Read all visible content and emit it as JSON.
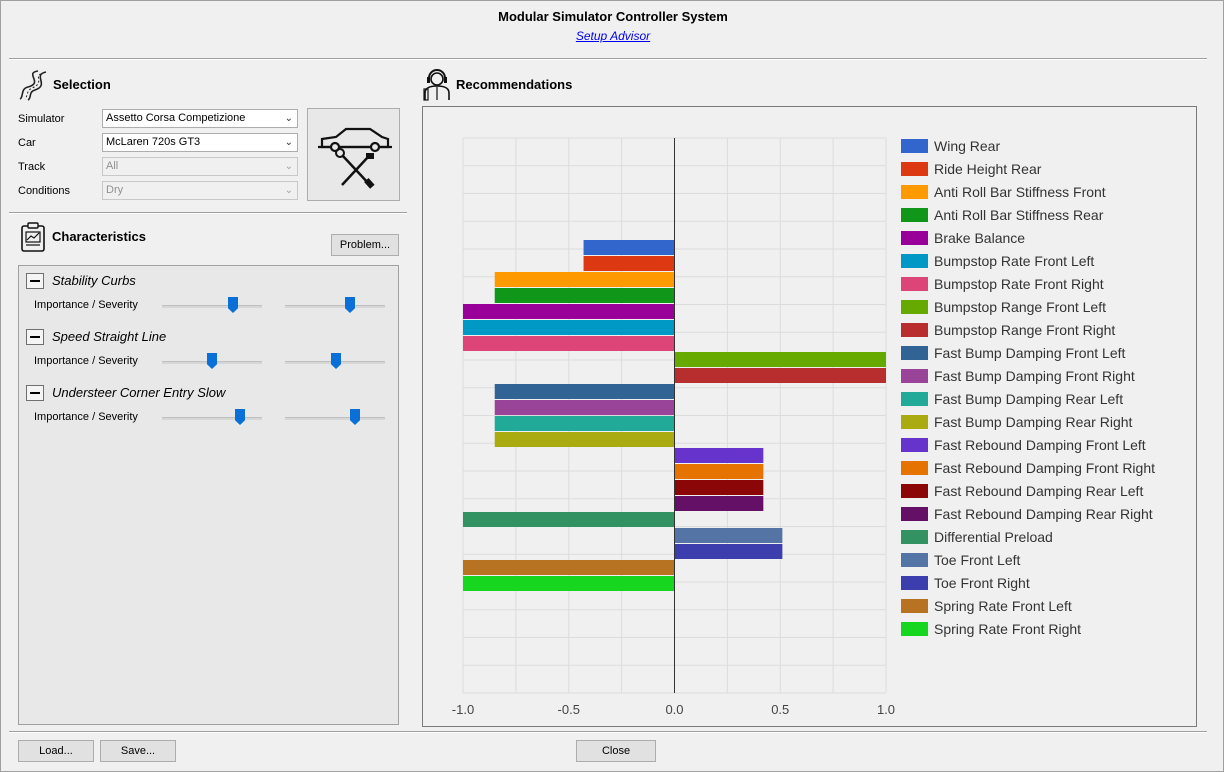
{
  "window": {
    "title": "Modular Simulator Controller System",
    "subtitle": "Setup Advisor"
  },
  "selection": {
    "title": "Selection",
    "icon": "road-icon",
    "fields": [
      {
        "label": "Simulator",
        "value": "Assetto Corsa Competizione",
        "enabled": true
      },
      {
        "label": "Car",
        "value": "McLaren 720s GT3",
        "enabled": true
      },
      {
        "label": "Track",
        "value": "All",
        "enabled": false
      },
      {
        "label": "Conditions",
        "value": "Dry",
        "enabled": false
      }
    ],
    "car_image_icon": "car-tools-icon"
  },
  "characteristics": {
    "title": "Characteristics",
    "icon": "clipboard-icon",
    "problem_button": "Problem...",
    "items": [
      {
        "name": "Stability Curbs",
        "label": "Importance / Severity",
        "importance": 0.71,
        "severity": 0.65
      },
      {
        "name": "Speed Straight Line",
        "label": "Importance / Severity",
        "importance": 0.5,
        "severity": 0.51
      },
      {
        "name": "Understeer Corner Entry Slow",
        "label": "Importance / Severity",
        "importance": 0.78,
        "severity": 0.7
      }
    ]
  },
  "recommendations": {
    "title": "Recommendations",
    "icon": "engineer-icon"
  },
  "chart_data": {
    "type": "bar",
    "orientation": "horizontal",
    "xlim": [
      -1.0,
      1.0
    ],
    "x_ticks": [
      "-1.0",
      "-0.5",
      "0.0",
      "0.5",
      "1.0"
    ],
    "grid": true,
    "legend_position": "right",
    "series": [
      {
        "name": "Wing Rear",
        "value": -0.43,
        "color": "#3366cc"
      },
      {
        "name": "Ride Height Rear",
        "value": -0.43,
        "color": "#dc3912"
      },
      {
        "name": "Anti Roll Bar Stiffness Front",
        "value": -0.85,
        "color": "#ff9900"
      },
      {
        "name": "Anti Roll Bar Stiffness Rear",
        "value": -0.85,
        "color": "#109618"
      },
      {
        "name": "Brake Balance",
        "value": -1.0,
        "color": "#990099"
      },
      {
        "name": "Bumpstop Rate Front Left",
        "value": -1.0,
        "color": "#0099c6"
      },
      {
        "name": "Bumpstop Rate Front Right",
        "value": -1.0,
        "color": "#dd4477"
      },
      {
        "name": "Bumpstop Range Front Left",
        "value": 1.0,
        "color": "#66aa00"
      },
      {
        "name": "Bumpstop Range Front Right",
        "value": 1.0,
        "color": "#b82e2e"
      },
      {
        "name": "Fast Bump Damping Front Left",
        "value": -0.85,
        "color": "#316395"
      },
      {
        "name": "Fast Bump Damping Front Right",
        "value": -0.85,
        "color": "#994499"
      },
      {
        "name": "Fast Bump Damping Rear Left",
        "value": -0.85,
        "color": "#22aa99"
      },
      {
        "name": "Fast Bump Damping Rear Right",
        "value": -0.85,
        "color": "#aaaa11"
      },
      {
        "name": "Fast Rebound Damping Front Left",
        "value": 0.42,
        "color": "#6633cc"
      },
      {
        "name": "Fast Rebound Damping Front Right",
        "value": 0.42,
        "color": "#e67300"
      },
      {
        "name": "Fast Rebound Damping Rear Left",
        "value": 0.42,
        "color": "#8b0707"
      },
      {
        "name": "Fast Rebound Damping Rear Right",
        "value": 0.42,
        "color": "#651067"
      },
      {
        "name": "Differential Preload",
        "value": -1.0,
        "color": "#329262"
      },
      {
        "name": "Toe Front Left",
        "value": 0.51,
        "color": "#5574a6"
      },
      {
        "name": "Toe Front Right",
        "value": 0.51,
        "color": "#3b3eac"
      },
      {
        "name": "Spring Rate Front Left",
        "value": -1.0,
        "color": "#b77322"
      },
      {
        "name": "Spring Rate Front Right",
        "value": -1.0,
        "color": "#16d620"
      }
    ]
  },
  "footer": {
    "load_button": "Load...",
    "save_button": "Save...",
    "close_button": "Close"
  }
}
